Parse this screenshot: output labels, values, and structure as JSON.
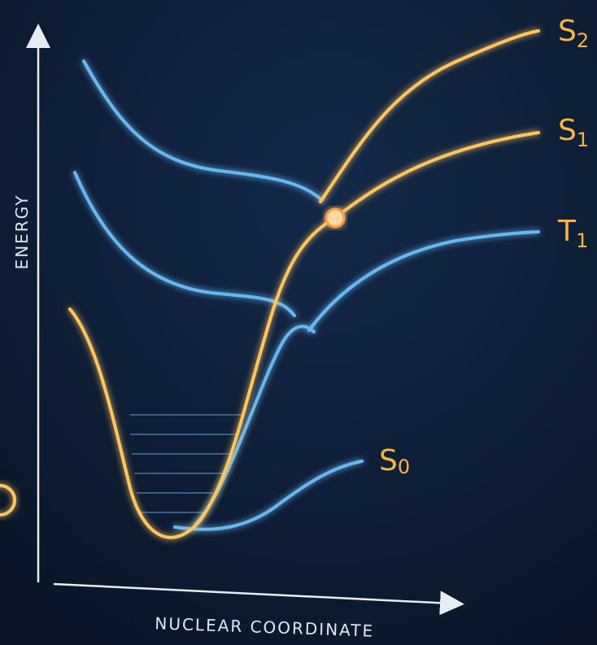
{
  "axes": {
    "y_label": "ENERGY",
    "x_label": "NUCLEAR COORDINATE"
  },
  "states": [
    {
      "symbol": "S",
      "subscript": "2"
    },
    {
      "symbol": "S",
      "subscript": "1"
    },
    {
      "symbol": "T",
      "subscript": "1"
    },
    {
      "symbol": "S",
      "subscript": "0"
    }
  ]
}
